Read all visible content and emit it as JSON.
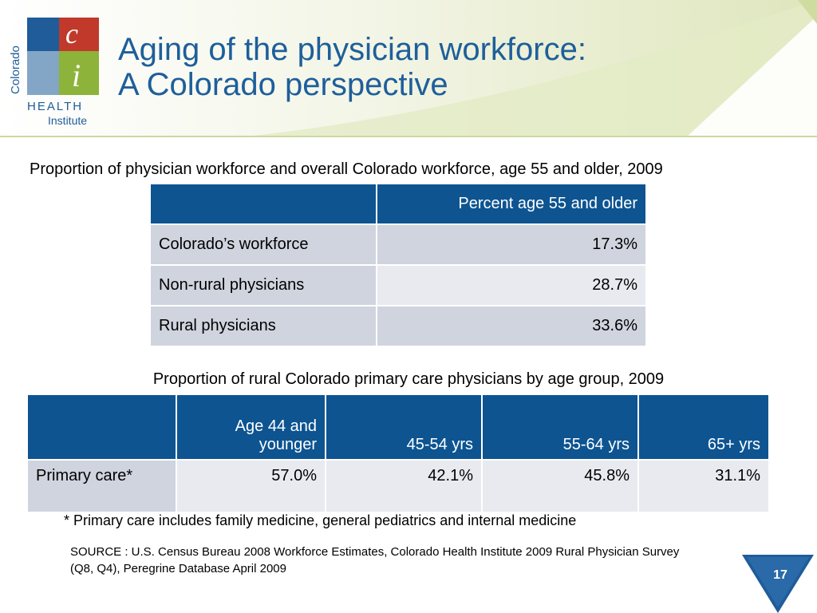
{
  "logo": {
    "letter_c": "c",
    "letter_i": "i",
    "vertical_text": "Colorado",
    "word_health": "HEALTH",
    "word_institute": "Institute"
  },
  "title": {
    "line1": "Aging of the physician workforce:",
    "line2": "A Colorado perspective"
  },
  "table1": {
    "caption": "Proportion of physician workforce and overall Colorado workforce, age 55 and older, 2009",
    "header": [
      "",
      "Percent age 55 and older"
    ],
    "rows": [
      [
        "Colorado’s workforce",
        "17.3%"
      ],
      [
        "Non-rural physicians",
        "28.7%"
      ],
      [
        "Rural physicians",
        "33.6%"
      ]
    ]
  },
  "table2": {
    "caption": "Proportion of rural Colorado primary care physicians by age group, 2009",
    "header": [
      "",
      "Age 44 and younger",
      "45-54 yrs",
      "55-64 yrs",
      "65+ yrs"
    ],
    "rows": [
      [
        "Primary care*",
        "57.0%",
        "42.1%",
        "45.8%",
        "31.1%"
      ]
    ]
  },
  "footnote": "* Primary care includes family medicine, general pediatrics and internal medicine",
  "source": "SOURCE :  U.S. Census Bureau 2008 Workforce Estimates, Colorado Health Institute 2009 Rural Physician Survey (Q8, Q4), Peregrine Database April 2009",
  "page_number": "17",
  "colors": {
    "title": "#1e5f9a",
    "table_header": "#0d5491",
    "table_cell_dark": "#cfd4de",
    "table_cell_light": "#e8eaef",
    "logo_blue": "#1f5c99",
    "logo_red": "#c0392b",
    "logo_green": "#8db33a",
    "accent_green": "#c6d48a"
  }
}
